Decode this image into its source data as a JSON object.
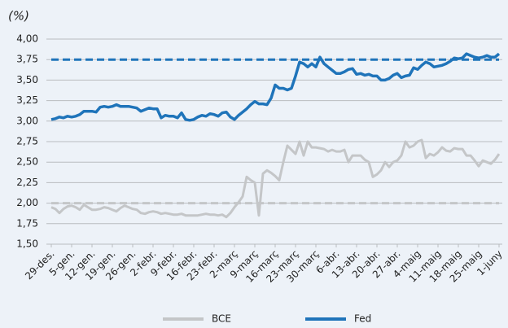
{
  "chart_data": {
    "type": "line",
    "y_label": "(%)",
    "ylim": [
      1.5,
      4.0
    ],
    "yticks": [
      {
        "value": 1.5,
        "label": "1,50"
      },
      {
        "value": 1.75,
        "label": "1,75"
      },
      {
        "value": 2.0,
        "label": "2,00"
      },
      {
        "value": 2.25,
        "label": "2,25"
      },
      {
        "value": 2.5,
        "label": "2,50"
      },
      {
        "value": 2.75,
        "label": "2,75"
      },
      {
        "value": 3.0,
        "label": "3,00"
      },
      {
        "value": 3.25,
        "label": "3,25"
      },
      {
        "value": 3.5,
        "label": "3,50"
      },
      {
        "value": 3.75,
        "label": "3,75"
      },
      {
        "value": 4.0,
        "label": "4,00"
      }
    ],
    "grid": true,
    "legend": "bottom",
    "categories": [
      "29-des.",
      null,
      null,
      null,
      null,
      "5-gen.",
      null,
      null,
      null,
      null,
      "12-gen.",
      null,
      null,
      null,
      null,
      "19-gen.",
      null,
      null,
      null,
      null,
      "26-gen.",
      null,
      null,
      null,
      null,
      "2-febr.",
      null,
      null,
      null,
      null,
      "9-febr.",
      null,
      null,
      null,
      null,
      "16-febr.",
      null,
      null,
      null,
      null,
      "23-febr.",
      null,
      null,
      null,
      null,
      "2-març",
      null,
      null,
      null,
      null,
      "9-març",
      null,
      null,
      null,
      null,
      "16-març",
      null,
      null,
      null,
      null,
      "23-març",
      null,
      null,
      null,
      null,
      "30-març",
      null,
      null,
      null,
      null,
      "6-abr.",
      null,
      null,
      null,
      null,
      "13-abr.",
      null,
      null,
      null,
      null,
      "20-abr.",
      null,
      null,
      null,
      null,
      "27-abr.",
      null,
      null,
      null,
      null,
      "4-maig",
      null,
      null,
      null,
      null,
      "11-maig",
      null,
      null,
      null,
      null,
      "18-maig",
      null,
      null,
      null,
      null,
      "25-maig",
      null,
      null,
      null,
      null,
      "1-juny"
    ],
    "series": [
      {
        "name": "BCE",
        "color": "#c4c6c8",
        "reference": 2.0,
        "values": [
          1.95,
          1.93,
          1.88,
          1.93,
          1.96,
          1.97,
          1.95,
          1.92,
          1.98,
          1.95,
          1.92,
          1.92,
          1.93,
          1.95,
          1.94,
          1.92,
          1.9,
          1.94,
          1.97,
          1.95,
          1.93,
          1.92,
          1.88,
          1.87,
          1.89,
          1.9,
          1.89,
          1.87,
          1.88,
          1.87,
          1.86,
          1.86,
          1.87,
          1.85,
          1.85,
          1.85,
          1.85,
          1.86,
          1.87,
          1.86,
          1.86,
          1.85,
          1.86,
          1.83,
          1.88,
          1.95,
          2.01,
          2.08,
          2.32,
          2.28,
          2.25,
          1.85,
          2.36,
          2.4,
          2.37,
          2.33,
          2.28,
          2.5,
          2.7,
          2.65,
          2.6,
          2.75,
          2.58,
          2.75,
          2.68,
          2.68,
          2.67,
          2.66,
          2.63,
          2.65,
          2.63,
          2.63,
          2.65,
          2.5,
          2.58,
          2.58,
          2.58,
          2.53,
          2.5,
          2.32,
          2.35,
          2.4,
          2.5,
          2.44,
          2.5,
          2.52,
          2.58,
          2.75,
          2.68,
          2.7,
          2.75,
          2.77,
          2.55,
          2.6,
          2.58,
          2.62,
          2.68,
          2.64,
          2.63,
          2.67,
          2.66,
          2.66,
          2.58,
          2.58,
          2.52,
          2.45,
          2.52,
          2.5,
          2.48,
          2.53,
          2.6
        ]
      },
      {
        "name": "Fed",
        "color": "#1f74ba",
        "reference": 3.75,
        "values": [
          3.02,
          3.03,
          3.05,
          3.04,
          3.06,
          3.05,
          3.06,
          3.08,
          3.12,
          3.12,
          3.12,
          3.11,
          3.17,
          3.18,
          3.17,
          3.18,
          3.2,
          3.18,
          3.18,
          3.18,
          3.17,
          3.16,
          3.12,
          3.14,
          3.16,
          3.15,
          3.15,
          3.04,
          3.07,
          3.06,
          3.06,
          3.04,
          3.1,
          3.02,
          3.01,
          3.02,
          3.05,
          3.07,
          3.06,
          3.09,
          3.08,
          3.06,
          3.1,
          3.11,
          3.05,
          3.02,
          3.07,
          3.11,
          3.15,
          3.2,
          3.24,
          3.21,
          3.21,
          3.2,
          3.28,
          3.44,
          3.4,
          3.4,
          3.38,
          3.4,
          3.55,
          3.72,
          3.7,
          3.66,
          3.7,
          3.66,
          3.78,
          3.7,
          3.66,
          3.62,
          3.58,
          3.58,
          3.6,
          3.63,
          3.64,
          3.57,
          3.58,
          3.56,
          3.57,
          3.55,
          3.55,
          3.5,
          3.5,
          3.52,
          3.56,
          3.58,
          3.53,
          3.55,
          3.56,
          3.65,
          3.63,
          3.68,
          3.72,
          3.7,
          3.66,
          3.67,
          3.68,
          3.7,
          3.73,
          3.77,
          3.76,
          3.77,
          3.82,
          3.8,
          3.78,
          3.77,
          3.78,
          3.8,
          3.78,
          3.78,
          3.82
        ]
      }
    ]
  }
}
